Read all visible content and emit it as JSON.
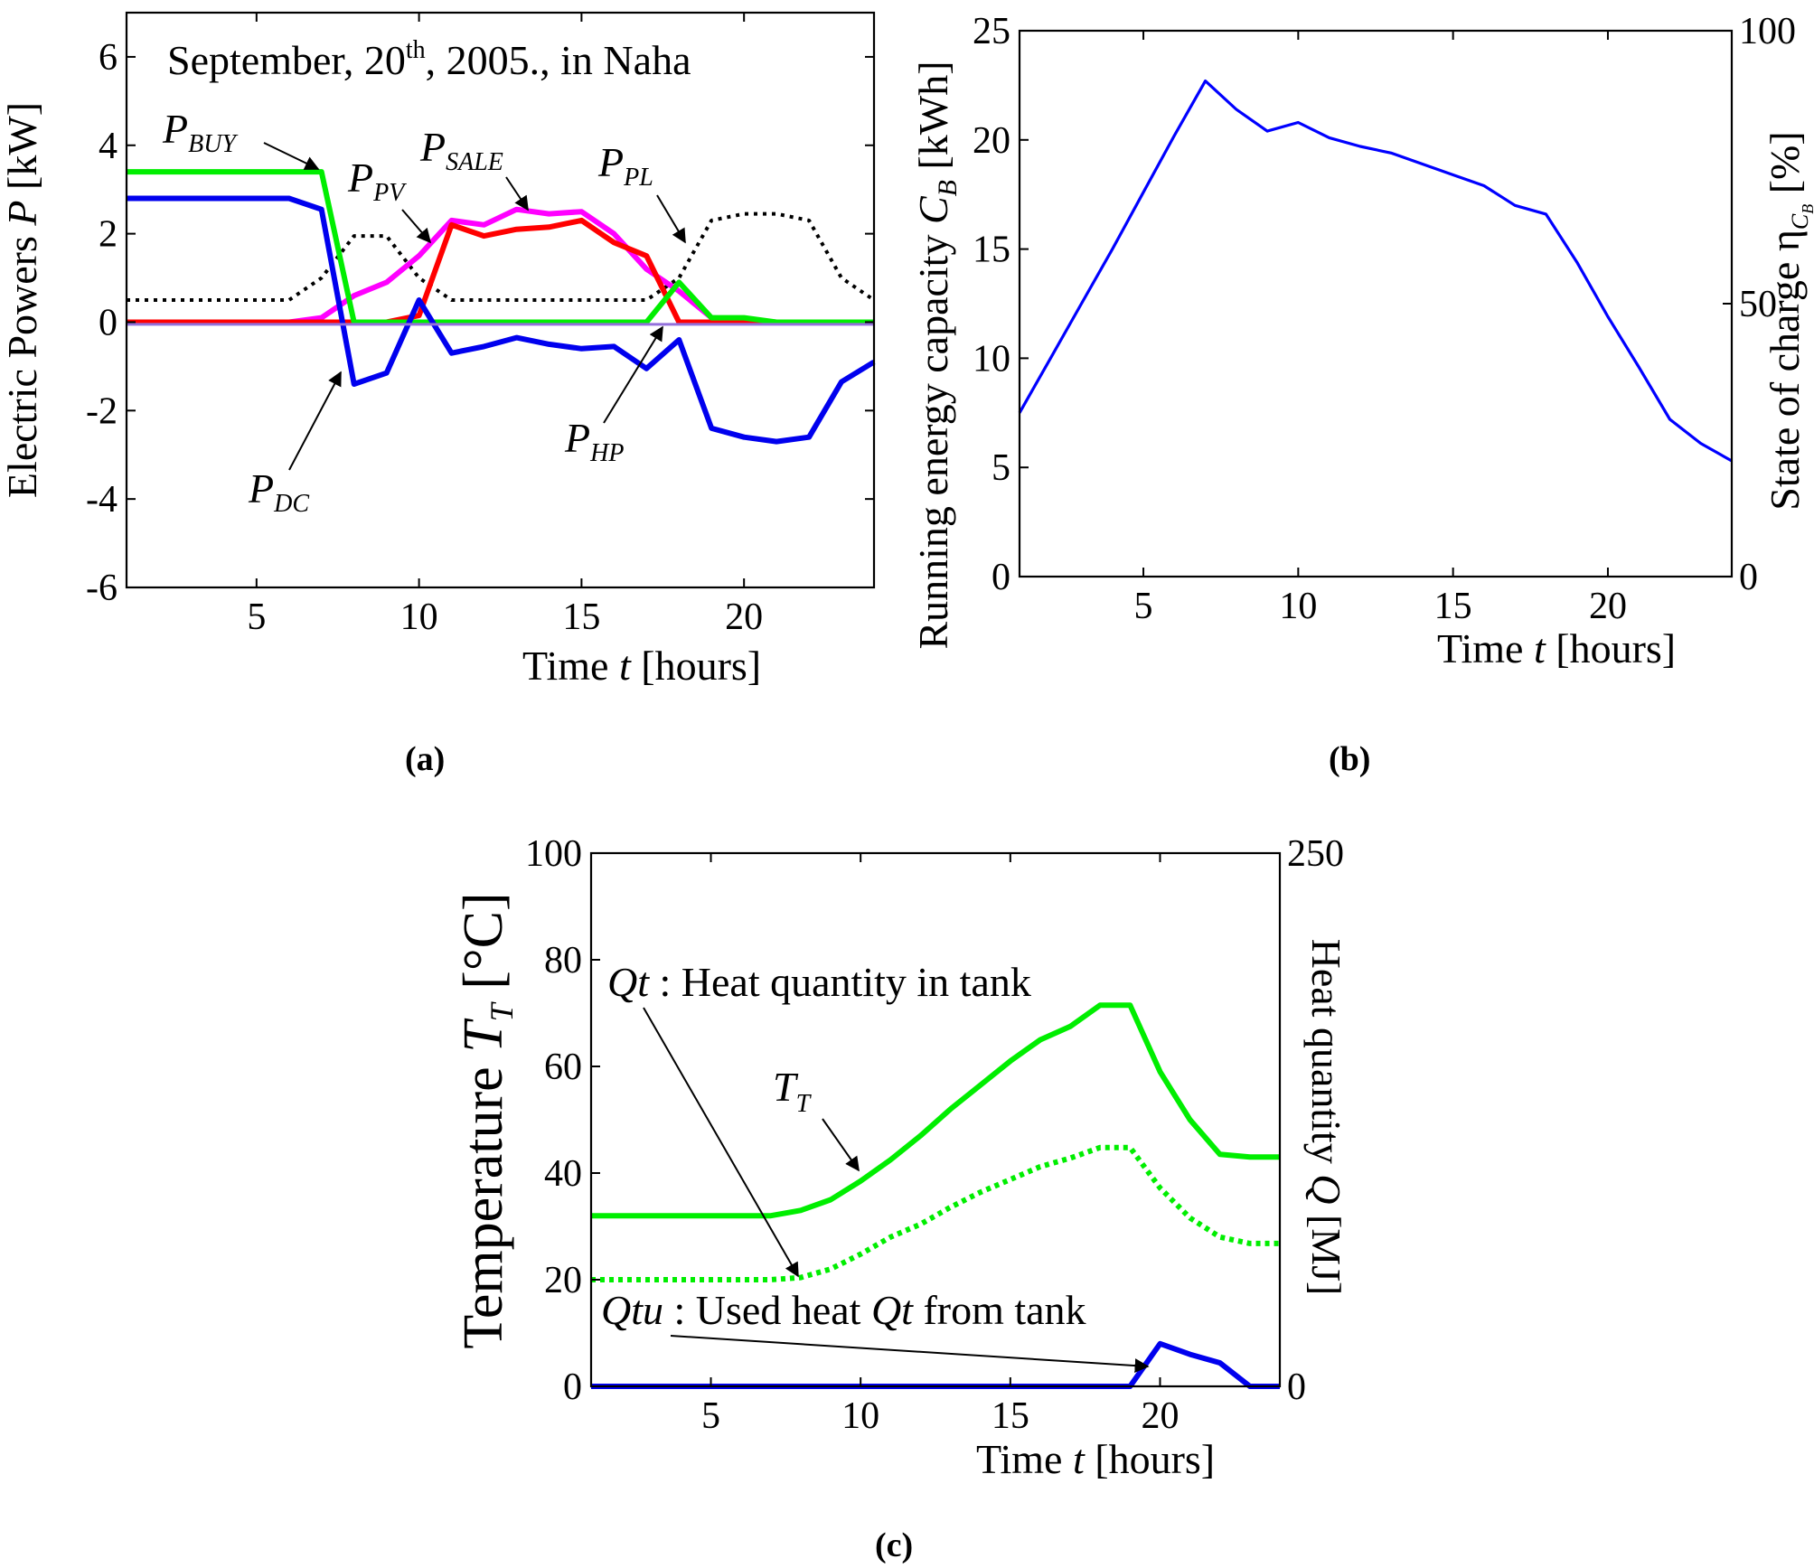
{
  "chart_data": [
    {
      "type": "line",
      "panel_label": "a",
      "title": "September, 20th, 2005., in Naha",
      "title_main": "September, 20",
      "title_sup": "th",
      "title_rest": ", 2005., in Naha",
      "xlabel": "Time t [hours]",
      "xlabel_pre": "Time ",
      "xlabel_var": "t",
      "xlabel_post": " [hours]",
      "ylabel": "Electric Powers P [kW]",
      "ylabel_pre": "Electric Powers ",
      "ylabel_var": "P",
      "ylabel_post": " [kW]",
      "xlim": [
        1,
        24
      ],
      "ylim": [
        -6,
        7
      ],
      "xticks": [
        5,
        10,
        15,
        20
      ],
      "yticks": [
        -6,
        -4,
        -2,
        0,
        2,
        4,
        6
      ],
      "x": [
        1,
        2,
        3,
        4,
        5,
        6,
        7,
        8,
        9,
        10,
        11,
        12,
        13,
        14,
        15,
        16,
        17,
        18,
        19,
        20,
        21,
        22,
        23,
        24
      ],
      "series": [
        {
          "name": "P_PL",
          "label_main": "P",
          "label_sub": "PL",
          "color": "#000000",
          "dash": "dotted",
          "values": [
            0.5,
            0.5,
            0.5,
            0.5,
            0.5,
            0.5,
            1.0,
            1.95,
            1.95,
            1.0,
            0.5,
            0.5,
            0.5,
            0.5,
            0.5,
            0.5,
            0.5,
            1.0,
            2.3,
            2.45,
            2.45,
            2.3,
            1.0,
            0.5
          ]
        },
        {
          "name": "P_PV",
          "label_main": "P",
          "label_sub": "PV",
          "color": "#ff00ff",
          "dash": "solid",
          "values": [
            0,
            0,
            0,
            0,
            0,
            0,
            0.1,
            0.6,
            0.9,
            1.5,
            2.3,
            2.2,
            2.55,
            2.45,
            2.5,
            2.0,
            1.2,
            0.7,
            0.1,
            0.05,
            0,
            0,
            0,
            0
          ]
        },
        {
          "name": "P_SALE",
          "label_main": "P",
          "label_sub": "SALE",
          "color": "#ff0000",
          "dash": "solid",
          "values": [
            0,
            0,
            0,
            0,
            0,
            0,
            0,
            0,
            0,
            0.15,
            2.2,
            1.95,
            2.1,
            2.15,
            2.3,
            1.8,
            1.5,
            0,
            0,
            0,
            0,
            0,
            0,
            0
          ]
        },
        {
          "name": "P_BUY",
          "label_main": "P",
          "label_sub": "BUY",
          "color": "#00ee00",
          "dash": "solid",
          "values": [
            3.4,
            3.4,
            3.4,
            3.4,
            3.4,
            3.4,
            3.4,
            0,
            0,
            0,
            0,
            0,
            0,
            0,
            0,
            0,
            0,
            0.9,
            0.1,
            0.1,
            0,
            0,
            0,
            0
          ]
        },
        {
          "name": "P_DC",
          "label_main": "P",
          "label_sub": "DC",
          "color": "#0000ee",
          "dash": "solid",
          "values": [
            2.8,
            2.8,
            2.8,
            2.8,
            2.8,
            2.8,
            2.55,
            -1.4,
            -1.15,
            0.5,
            -0.7,
            -0.55,
            -0.35,
            -0.5,
            -0.6,
            -0.55,
            -1.05,
            -0.4,
            -2.4,
            -2.6,
            -2.7,
            -2.6,
            -1.35,
            -0.9
          ]
        },
        {
          "name": "P_HP",
          "label_main": "P",
          "label_sub": "HP",
          "color": "#9370db",
          "dash": "solid",
          "values": [
            -0.05,
            -0.05,
            -0.05,
            -0.05,
            -0.05,
            -0.05,
            -0.05,
            -0.05,
            -0.05,
            -0.05,
            -0.05,
            -0.05,
            -0.05,
            -0.05,
            -0.05,
            -0.05,
            -0.05,
            -0.05,
            -0.05,
            -0.05,
            -0.05,
            -0.05,
            -0.05,
            -0.05
          ]
        }
      ]
    },
    {
      "type": "line",
      "panel_label": "b",
      "xlabel": "Time t [hours]",
      "xlabel_pre": "Time ",
      "xlabel_var": "t",
      "xlabel_post": " [hours]",
      "ylabel": "Running energy capacity C_B [kWh]",
      "ylabel_pre": "Running energy capacity ",
      "ylabel_var": "C",
      "ylabel_sub": "B",
      "ylabel_post": " [kWh]",
      "ylabel_right": "State of charge η_CB [%]",
      "ylabel_right_pre": "State of charge η",
      "ylabel_right_sub": "C",
      "ylabel_right_subsub": "B",
      "ylabel_right_post": " [%]",
      "xlim": [
        1,
        24
      ],
      "ylim": [
        0,
        25
      ],
      "ylim_right": [
        0,
        100
      ],
      "xticks": [
        5,
        10,
        15,
        20
      ],
      "yticks": [
        0,
        5,
        10,
        15,
        20,
        25
      ],
      "yticks_right": [
        0,
        50,
        100
      ],
      "x": [
        1,
        2,
        3,
        4,
        5,
        6,
        7,
        8,
        9,
        10,
        11,
        12,
        13,
        14,
        15,
        16,
        17,
        18,
        19,
        20,
        21,
        22,
        23,
        24
      ],
      "series": [
        {
          "name": "C_B",
          "color": "#0000ff",
          "values": [
            7.5,
            10.0,
            12.5,
            15.0,
            17.6,
            20.2,
            22.7,
            21.4,
            20.4,
            20.8,
            20.1,
            19.7,
            19.4,
            18.9,
            18.4,
            17.9,
            17.0,
            16.6,
            14.4,
            11.9,
            9.6,
            7.2,
            6.1,
            5.3
          ]
        }
      ]
    },
    {
      "type": "line",
      "panel_label": "c",
      "xlabel": "Time t [hours]",
      "xlabel_pre": "Time ",
      "xlabel_var": "t",
      "xlabel_post": " [hours]",
      "ylabel": "Temperature T_T [°C]",
      "ylabel_pre": "Temperature ",
      "ylabel_var": "T",
      "ylabel_sub": "T",
      "ylabel_post": " [°C]",
      "ylabel_right": "Heat quantity Q [MJ]",
      "ylabel_right_pre": "Heat quantity ",
      "ylabel_right_var": "Q",
      "ylabel_right_post": " [MJ]",
      "xlim": [
        1,
        24
      ],
      "ylim": [
        0,
        100
      ],
      "ylim_right": [
        0,
        250
      ],
      "xticks": [
        5,
        10,
        15,
        20
      ],
      "yticks": [
        0,
        20,
        40,
        60,
        80,
        100
      ],
      "yticks_right": [
        0,
        250
      ],
      "x": [
        1,
        2,
        3,
        4,
        5,
        6,
        7,
        8,
        9,
        10,
        11,
        12,
        13,
        14,
        15,
        16,
        17,
        18,
        19,
        20,
        21,
        22,
        23,
        24
      ],
      "series": [
        {
          "name": "T_T",
          "label_main": "T",
          "label_sub": "T",
          "color": "#00ee00",
          "dash": "solid",
          "axis": "left",
          "values": [
            32,
            32,
            32,
            32,
            32,
            32,
            32,
            33,
            35,
            38.5,
            42.5,
            47,
            52,
            56.5,
            61,
            65,
            67.5,
            71.5,
            71.5,
            59,
            50,
            43.5,
            43,
            43
          ]
        },
        {
          "name": "Q_t",
          "label_main": "Qt",
          "label_text": " : Heat quantity in tank",
          "color": "#00ee00",
          "dash": "dotted",
          "axis": "right",
          "values": [
            50,
            50,
            50,
            50,
            50,
            50,
            50,
            51,
            55,
            62,
            70,
            76,
            84,
            91,
            97,
            103,
            107,
            112,
            112,
            93,
            79,
            70,
            67,
            67
          ]
        },
        {
          "name": "Q_tu",
          "label_main": "Qtu",
          "label_text": " : Used heat ",
          "label_text_var": "Qt",
          "label_text_post": " from tank",
          "color": "#0000ee",
          "dash": "solid",
          "axis": "right",
          "values": [
            0,
            0,
            0,
            0,
            0,
            0,
            0,
            0,
            0,
            0,
            0,
            0,
            0,
            0,
            0,
            0,
            0,
            0,
            0,
            20,
            15,
            11,
            0,
            0
          ]
        }
      ]
    }
  ]
}
